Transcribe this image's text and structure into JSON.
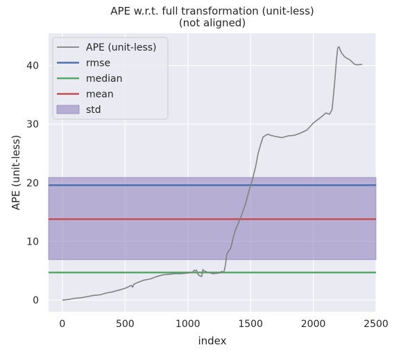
{
  "chart_data": {
    "type": "line",
    "title": "APE w.r.t. full transformation (unit-less)",
    "subtitle": "(not aligned)",
    "xlabel": "index",
    "ylabel": "APE (unit-less)",
    "xlim": [
      -110,
      2500
    ],
    "ylim": [
      -2,
      45.5
    ],
    "xticks": [
      0,
      500,
      1000,
      1500,
      2000,
      2500
    ],
    "yticks": [
      0,
      10,
      20,
      30,
      40
    ],
    "grid": true,
    "legend_position": "top-left",
    "series": [
      {
        "name": "APE (unit-less)",
        "color": "#808080",
        "x": [
          0,
          50,
          100,
          150,
          200,
          250,
          300,
          350,
          400,
          450,
          500,
          550,
          560,
          570,
          600,
          650,
          700,
          750,
          800,
          850,
          900,
          950,
          1000,
          1040,
          1050,
          1060,
          1070,
          1080,
          1090,
          1100,
          1110,
          1120,
          1130,
          1150,
          1200,
          1250,
          1270,
          1280,
          1290,
          1300,
          1310,
          1320,
          1330,
          1340,
          1350,
          1360,
          1380,
          1400,
          1420,
          1440,
          1460,
          1480,
          1500,
          1520,
          1540,
          1560,
          1580,
          1600,
          1620,
          1640,
          1660,
          1680,
          1700,
          1750,
          1800,
          1850,
          1900,
          1950,
          2000,
          2050,
          2100,
          2130,
          2150,
          2170,
          2185,
          2195,
          2205,
          2215,
          2222,
          2230,
          2250,
          2270,
          2290,
          2300,
          2330,
          2360,
          2370,
          2390
        ],
        "y": [
          0,
          0.1,
          0.3,
          0.4,
          0.6,
          0.8,
          0.9,
          1.2,
          1.4,
          1.7,
          2.0,
          2.5,
          2.2,
          2.7,
          3.0,
          3.4,
          3.6,
          4.0,
          4.3,
          4.4,
          4.5,
          4.5,
          4.6,
          4.8,
          5.1,
          5.0,
          5.1,
          4.4,
          4.2,
          4.1,
          4.0,
          5.2,
          5.0,
          4.8,
          4.5,
          4.6,
          4.9,
          4.7,
          5.0,
          6.0,
          7.8,
          8.2,
          8.5,
          8.8,
          9.5,
          10.5,
          12.0,
          13.0,
          14.0,
          15.2,
          16.4,
          18.0,
          19.5,
          21.0,
          22.7,
          25.0,
          26.5,
          27.8,
          28.1,
          28.3,
          28.1,
          28.0,
          27.9,
          27.7,
          28.0,
          28.1,
          28.5,
          29.0,
          30.2,
          31.0,
          31.9,
          31.7,
          32.5,
          37.0,
          41.0,
          43.0,
          43.2,
          42.6,
          42.3,
          42.0,
          41.5,
          41.2,
          41.0,
          40.8,
          40.2,
          40.1,
          40.2,
          40.2
        ]
      },
      {
        "name": "rmse",
        "color": "#4C72B0",
        "y": 19.6
      },
      {
        "name": "median",
        "color": "#55A868",
        "y": 4.7
      },
      {
        "name": "mean",
        "color": "#C44E52",
        "y": 13.8
      },
      {
        "name": "std",
        "color": "#8172B3",
        "range": [
          6.9,
          20.9
        ]
      }
    ]
  }
}
